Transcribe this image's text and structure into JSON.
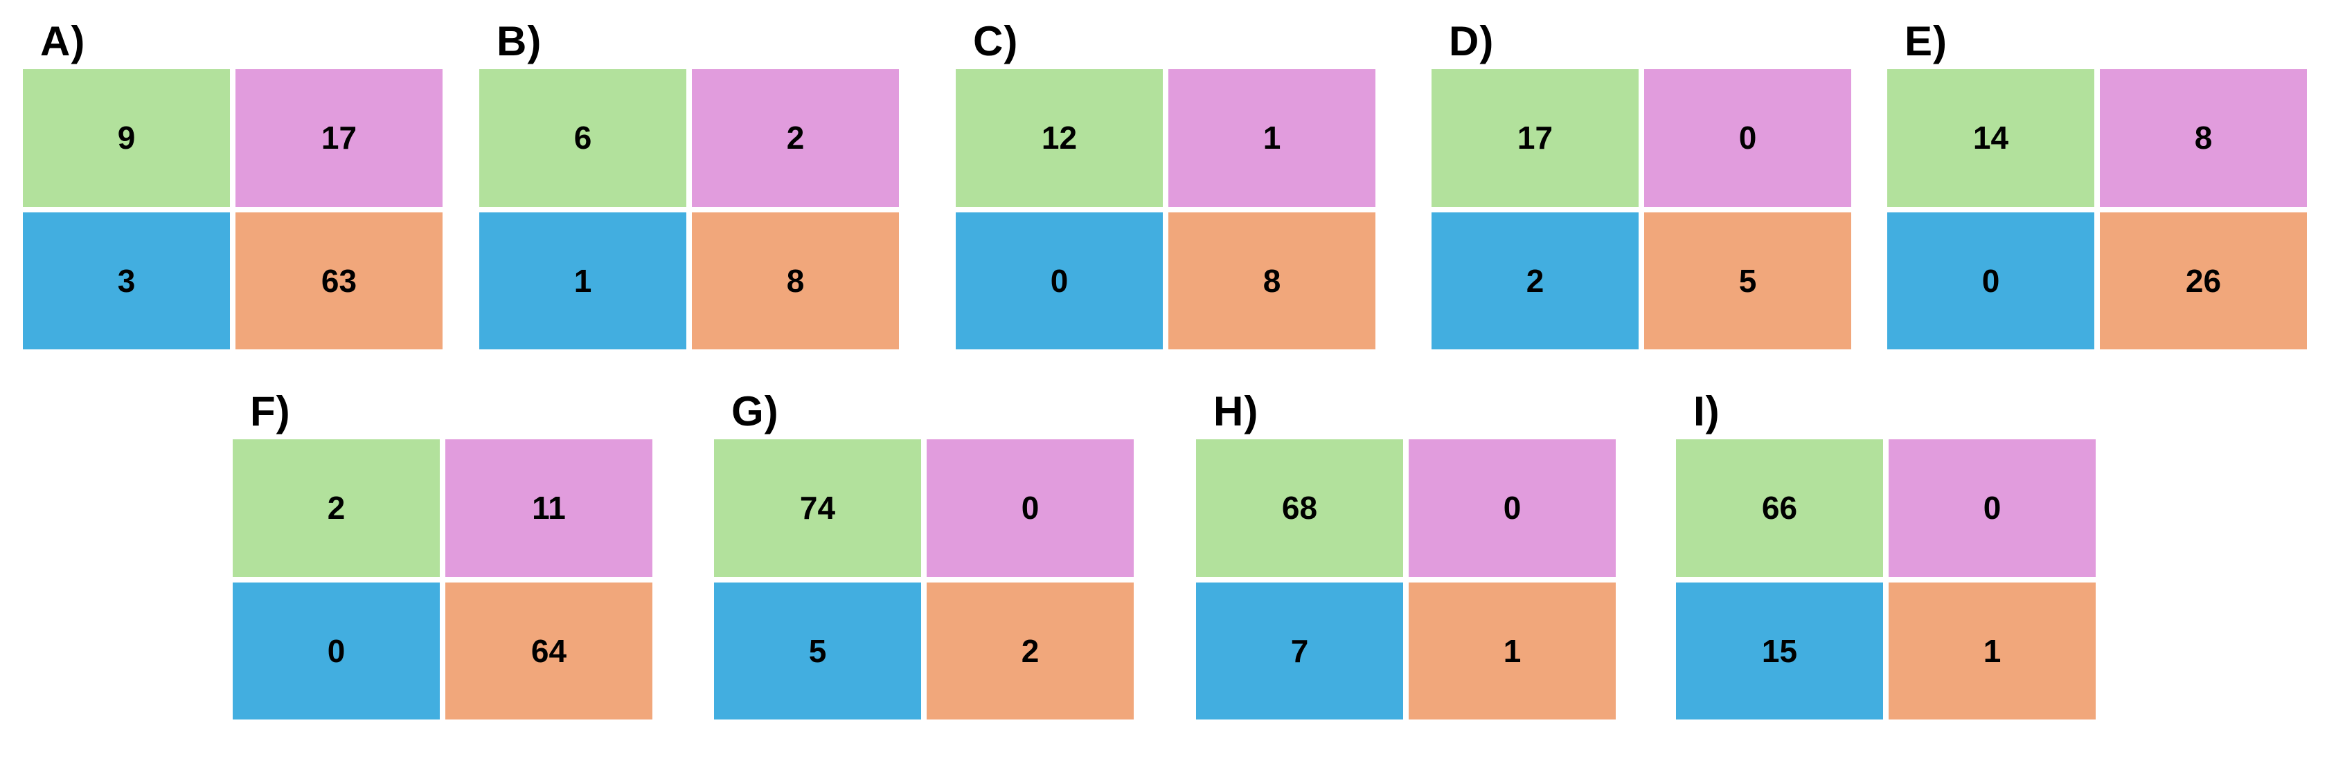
{
  "figure": {
    "background": "#ffffff",
    "text_color": "#000000"
  },
  "palette": {
    "top_left_green": "#b2e19c",
    "top_right_pink": "#e19cdd",
    "bottom_left_blue": "#42aee0",
    "bottom_right_orange": "#f1a77b",
    "gap": "#ffffff"
  },
  "panels": [
    {
      "label": "A)",
      "cells": [
        9,
        17,
        3,
        63
      ]
    },
    {
      "label": "B)",
      "cells": [
        6,
        2,
        1,
        8
      ]
    },
    {
      "label": "C)",
      "cells": [
        12,
        1,
        0,
        8
      ]
    },
    {
      "label": "D)",
      "cells": [
        17,
        0,
        2,
        5
      ]
    },
    {
      "label": "E)",
      "cells": [
        14,
        8,
        0,
        26
      ]
    },
    {
      "label": "F)",
      "cells": [
        2,
        11,
        0,
        64
      ]
    },
    {
      "label": "G)",
      "cells": [
        74,
        0,
        5,
        2
      ]
    },
    {
      "label": "H)",
      "cells": [
        68,
        0,
        7,
        1
      ]
    },
    {
      "label": "I)",
      "cells": [
        66,
        0,
        15,
        1
      ]
    }
  ],
  "chart_data": [
    {
      "type": "heatmap",
      "title": "A)",
      "rows": 2,
      "cols": 2,
      "matrix": [
        [
          9,
          17
        ],
        [
          3,
          63
        ]
      ],
      "cell_colors": [
        [
          "#b2e19c",
          "#e19cdd"
        ],
        [
          "#42aee0",
          "#f1a77b"
        ]
      ],
      "legend": false
    },
    {
      "type": "heatmap",
      "title": "B)",
      "rows": 2,
      "cols": 2,
      "matrix": [
        [
          6,
          2
        ],
        [
          1,
          8
        ]
      ],
      "cell_colors": [
        [
          "#b2e19c",
          "#e19cdd"
        ],
        [
          "#42aee0",
          "#f1a77b"
        ]
      ],
      "legend": false
    },
    {
      "type": "heatmap",
      "title": "C)",
      "rows": 2,
      "cols": 2,
      "matrix": [
        [
          12,
          1
        ],
        [
          0,
          8
        ]
      ],
      "cell_colors": [
        [
          "#b2e19c",
          "#e19cdd"
        ],
        [
          "#42aee0",
          "#f1a77b"
        ]
      ],
      "legend": false
    },
    {
      "type": "heatmap",
      "title": "D)",
      "rows": 2,
      "cols": 2,
      "matrix": [
        [
          17,
          0
        ],
        [
          2,
          5
        ]
      ],
      "cell_colors": [
        [
          "#b2e19c",
          "#e19cdd"
        ],
        [
          "#42aee0",
          "#f1a77b"
        ]
      ],
      "legend": false
    },
    {
      "type": "heatmap",
      "title": "E)",
      "rows": 2,
      "cols": 2,
      "matrix": [
        [
          14,
          8
        ],
        [
          0,
          26
        ]
      ],
      "cell_colors": [
        [
          "#b2e19c",
          "#e19cdd"
        ],
        [
          "#42aee0",
          "#f1a77b"
        ]
      ],
      "legend": false
    },
    {
      "type": "heatmap",
      "title": "F)",
      "rows": 2,
      "cols": 2,
      "matrix": [
        [
          2,
          11
        ],
        [
          0,
          64
        ]
      ],
      "cell_colors": [
        [
          "#b2e19c",
          "#e19cdd"
        ],
        [
          "#42aee0",
          "#f1a77b"
        ]
      ],
      "legend": false
    },
    {
      "type": "heatmap",
      "title": "G)",
      "rows": 2,
      "cols": 2,
      "matrix": [
        [
          74,
          0
        ],
        [
          5,
          2
        ]
      ],
      "cell_colors": [
        [
          "#b2e19c",
          "#e19cdd"
        ],
        [
          "#42aee0",
          "#f1a77b"
        ]
      ],
      "legend": false
    },
    {
      "type": "heatmap",
      "title": "H)",
      "rows": 2,
      "cols": 2,
      "matrix": [
        [
          68,
          0
        ],
        [
          7,
          1
        ]
      ],
      "cell_colors": [
        [
          "#b2e19c",
          "#e19cdd"
        ],
        [
          "#42aee0",
          "#f1a77b"
        ]
      ],
      "legend": false
    },
    {
      "type": "heatmap",
      "title": "I)",
      "rows": 2,
      "cols": 2,
      "matrix": [
        [
          66,
          0
        ],
        [
          15,
          1
        ]
      ],
      "cell_colors": [
        [
          "#b2e19c",
          "#e19cdd"
        ],
        [
          "#42aee0",
          "#f1a77b"
        ]
      ],
      "legend": false
    }
  ]
}
